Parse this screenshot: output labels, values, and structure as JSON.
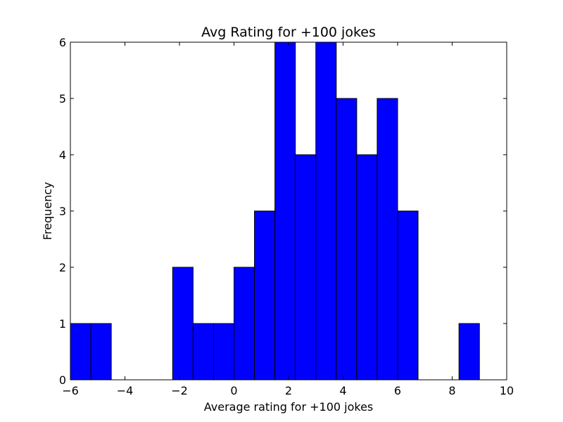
{
  "chart_data": {
    "type": "bar",
    "title": "Avg Rating for +100 jokes",
    "xlabel": "Average rating for +100 jokes",
    "ylabel": "Frequency",
    "xlim": [
      -6,
      10
    ],
    "ylim": [
      0,
      6
    ],
    "grid": false,
    "legend": "none",
    "bar_color": "#0000ff",
    "edge_color": "#000000",
    "bins": [
      {
        "x0": -6.0,
        "x1": -5.25,
        "value": 1
      },
      {
        "x0": -5.25,
        "x1": -4.5,
        "value": 1
      },
      {
        "x0": -4.5,
        "x1": -3.75,
        "value": 0
      },
      {
        "x0": -3.75,
        "x1": -3.0,
        "value": 0
      },
      {
        "x0": -3.0,
        "x1": -2.25,
        "value": 0
      },
      {
        "x0": -2.25,
        "x1": -1.5,
        "value": 2
      },
      {
        "x0": -1.5,
        "x1": -0.75,
        "value": 1
      },
      {
        "x0": -0.75,
        "x1": 0.0,
        "value": 1
      },
      {
        "x0": 0.0,
        "x1": 0.75,
        "value": 2
      },
      {
        "x0": 0.75,
        "x1": 1.5,
        "value": 3
      },
      {
        "x0": 1.5,
        "x1": 2.25,
        "value": 6
      },
      {
        "x0": 2.25,
        "x1": 3.0,
        "value": 4
      },
      {
        "x0": 3.0,
        "x1": 3.75,
        "value": 6
      },
      {
        "x0": 3.75,
        "x1": 4.5,
        "value": 5
      },
      {
        "x0": 4.5,
        "x1": 5.25,
        "value": 4
      },
      {
        "x0": 5.25,
        "x1": 6.0,
        "value": 5
      },
      {
        "x0": 6.0,
        "x1": 6.75,
        "value": 3
      },
      {
        "x0": 6.75,
        "x1": 7.5,
        "value": 0
      },
      {
        "x0": 7.5,
        "x1": 8.25,
        "value": 0
      },
      {
        "x0": 8.25,
        "x1": 9.0,
        "value": 1
      }
    ],
    "x_ticks": [
      -6,
      -4,
      -2,
      0,
      2,
      4,
      6,
      8,
      10
    ],
    "x_tick_labels": [
      "−6",
      "−4",
      "−2",
      "0",
      "2",
      "4",
      "6",
      "8",
      "10"
    ],
    "y_ticks": [
      0,
      1,
      2,
      3,
      4,
      5,
      6
    ],
    "y_tick_labels": [
      "0",
      "1",
      "2",
      "3",
      "4",
      "5",
      "6"
    ]
  }
}
